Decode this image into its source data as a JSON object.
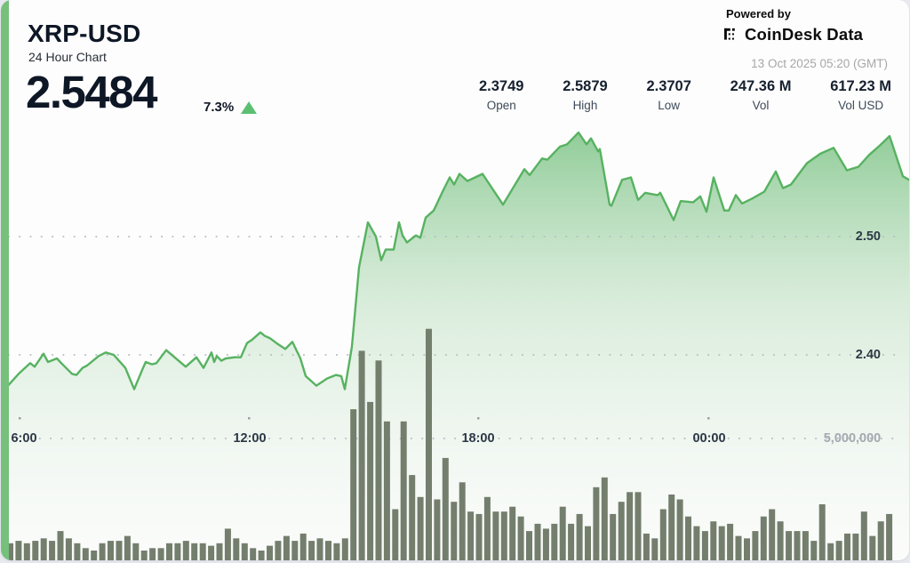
{
  "header": {
    "symbol": "XRP-USD",
    "subtitle": "24 Hour Chart",
    "price": "2.5484",
    "change_pct": "7.3%",
    "change_direction": "up",
    "stats": [
      {
        "value": "2.3749",
        "label": "Open"
      },
      {
        "value": "2.5879",
        "label": "High"
      },
      {
        "value": "2.3707",
        "label": "Low"
      },
      {
        "value": "247.36 M",
        "label": "Vol"
      },
      {
        "value": "617.23 M",
        "label": "Vol USD"
      }
    ]
  },
  "branding": {
    "powered_by": "Powered by",
    "provider": "CoinDesk Data",
    "timestamp": "13 Oct 2025 05:20 (GMT)"
  },
  "colors": {
    "accent_stripe": "#76c07c",
    "price_line": "#57b261",
    "up_green": "#5cbf72",
    "volume_bar": "#747e6d",
    "grid_dot": "#b6bcc3",
    "text_dark": "#0e1726",
    "muted_gray": "#a3a9af",
    "page_bg": "#e9e9f1"
  },
  "chart_data": {
    "type": "area",
    "title": "XRP-USD 24 Hour Chart",
    "price_axis": {
      "side": "right",
      "gridlines": [
        {
          "label": "2.50",
          "value": 2.5
        },
        {
          "label": "2.40",
          "value": 2.4
        }
      ]
    },
    "x_axis": {
      "ticks": [
        {
          "label": "6:00"
        },
        {
          "label": "12:00"
        },
        {
          "label": "18:00"
        },
        {
          "label": "00:00"
        }
      ]
    },
    "volume_axis": {
      "max_label": "5,000,000"
    },
    "price_series": {
      "name": "XRP-USD price",
      "open": 2.3749,
      "high": 2.5879,
      "low": 2.3707,
      "last": 2.5484,
      "points": [
        [
          3,
          2.375
        ],
        [
          8,
          2.374
        ],
        [
          20,
          2.384
        ],
        [
          33,
          2.393
        ],
        [
          38,
          2.39
        ],
        [
          48,
          2.401
        ],
        [
          53,
          2.394
        ],
        [
          63,
          2.397
        ],
        [
          68,
          2.393
        ],
        [
          80,
          2.384
        ],
        [
          85,
          2.383
        ],
        [
          92,
          2.389
        ],
        [
          97,
          2.391
        ],
        [
          110,
          2.399
        ],
        [
          118,
          2.402
        ],
        [
          127,
          2.4
        ],
        [
          140,
          2.389
        ],
        [
          150,
          2.371
        ],
        [
          160,
          2.389
        ],
        [
          163,
          2.394
        ],
        [
          170,
          2.392
        ],
        [
          175,
          2.393
        ],
        [
          186,
          2.404
        ],
        [
          200,
          2.395
        ],
        [
          208,
          2.39
        ],
        [
          220,
          2.398
        ],
        [
          228,
          2.389
        ],
        [
          237,
          2.402
        ],
        [
          240,
          2.394
        ],
        [
          243,
          2.399
        ],
        [
          248,
          2.395
        ],
        [
          253,
          2.397
        ],
        [
          263,
          2.398
        ],
        [
          270,
          2.398
        ],
        [
          277,
          2.41
        ],
        [
          283,
          2.413
        ],
        [
          292,
          2.419
        ],
        [
          297,
          2.416
        ],
        [
          303,
          2.414
        ],
        [
          310,
          2.41
        ],
        [
          320,
          2.405
        ],
        [
          328,
          2.411
        ],
        [
          337,
          2.397
        ],
        [
          343,
          2.382
        ],
        [
          352,
          2.376
        ],
        [
          355,
          2.374
        ],
        [
          367,
          2.38
        ],
        [
          377,
          2.383
        ],
        [
          383,
          2.382
        ],
        [
          387,
          2.371
        ],
        [
          395,
          2.407
        ],
        [
          403,
          2.474
        ],
        [
          413,
          2.512
        ],
        [
          422,
          2.5
        ],
        [
          428,
          2.48
        ],
        [
          433,
          2.489
        ],
        [
          442,
          2.489
        ],
        [
          448,
          2.512
        ],
        [
          452,
          2.501
        ],
        [
          457,
          2.495
        ],
        [
          467,
          2.501
        ],
        [
          472,
          2.499
        ],
        [
          478,
          2.516
        ],
        [
          487,
          2.522
        ],
        [
          497,
          2.538
        ],
        [
          505,
          2.55
        ],
        [
          510,
          2.544
        ],
        [
          516,
          2.553
        ],
        [
          525,
          2.547
        ],
        [
          542,
          2.553
        ],
        [
          565,
          2.527
        ],
        [
          589,
          2.557
        ],
        [
          595,
          2.552
        ],
        [
          609,
          2.566
        ],
        [
          615,
          2.565
        ],
        [
          629,
          2.576
        ],
        [
          637,
          2.578
        ],
        [
          650,
          2.588
        ],
        [
          659,
          2.578
        ],
        [
          664,
          2.583
        ],
        [
          672,
          2.572
        ],
        [
          674,
          2.574
        ],
        [
          685,
          2.527
        ],
        [
          687,
          2.526
        ],
        [
          699,
          2.548
        ],
        [
          709,
          2.55
        ],
        [
          717,
          2.531
        ],
        [
          725,
          2.537
        ],
        [
          739,
          2.535
        ],
        [
          742,
          2.537
        ],
        [
          757,
          2.514
        ],
        [
          765,
          2.53
        ],
        [
          779,
          2.529
        ],
        [
          787,
          2.534
        ],
        [
          794,
          2.521
        ],
        [
          802,
          2.55
        ],
        [
          814,
          2.522
        ],
        [
          819,
          2.522
        ],
        [
          827,
          2.535
        ],
        [
          834,
          2.528
        ],
        [
          845,
          2.532
        ],
        [
          859,
          2.538
        ],
        [
          872,
          2.555
        ],
        [
          880,
          2.541
        ],
        [
          889,
          2.544
        ],
        [
          907,
          2.562
        ],
        [
          922,
          2.57
        ],
        [
          937,
          2.575
        ],
        [
          952,
          2.556
        ],
        [
          965,
          2.559
        ],
        [
          977,
          2.569
        ],
        [
          989,
          2.577
        ],
        [
          1000,
          2.585
        ],
        [
          1015,
          2.551
        ],
        [
          1022,
          2.548
        ]
      ]
    },
    "volume_series": {
      "name": "Volume",
      "unit": "millions",
      "values_millions": [
        0.7,
        0.8,
        0.7,
        0.8,
        0.9,
        0.8,
        1.2,
        0.9,
        0.7,
        0.5,
        0.4,
        0.7,
        0.8,
        0.8,
        1.0,
        0.7,
        0.4,
        0.5,
        0.5,
        0.7,
        0.7,
        0.8,
        0.7,
        0.7,
        0.6,
        0.7,
        1.3,
        0.9,
        0.7,
        0.5,
        0.4,
        0.6,
        0.8,
        1.0,
        0.8,
        1.1,
        0.8,
        0.9,
        0.8,
        0.7,
        0.9,
        6.2,
        8.6,
        6.5,
        8.2,
        5.7,
        2.1,
        5.7,
        3.5,
        2.6,
        9.5,
        2.5,
        4.2,
        2.4,
        3.2,
        2.0,
        1.9,
        2.6,
        2.0,
        2.0,
        2.2,
        1.8,
        1.2,
        1.5,
        1.3,
        1.5,
        2.2,
        1.5,
        1.9,
        1.4,
        3.0,
        3.4,
        1.9,
        2.4,
        2.8,
        2.8,
        1.1,
        0.9,
        2.1,
        2.7,
        2.5,
        1.8,
        1.4,
        1.2,
        1.6,
        1.4,
        1.5,
        1.0,
        0.9,
        1.2,
        1.8,
        2.1,
        1.6,
        1.2,
        1.2,
        1.2,
        0.8,
        2.3,
        0.7,
        0.8,
        1.1,
        1.1,
        2.0,
        1.0,
        1.6,
        1.9
      ]
    }
  }
}
